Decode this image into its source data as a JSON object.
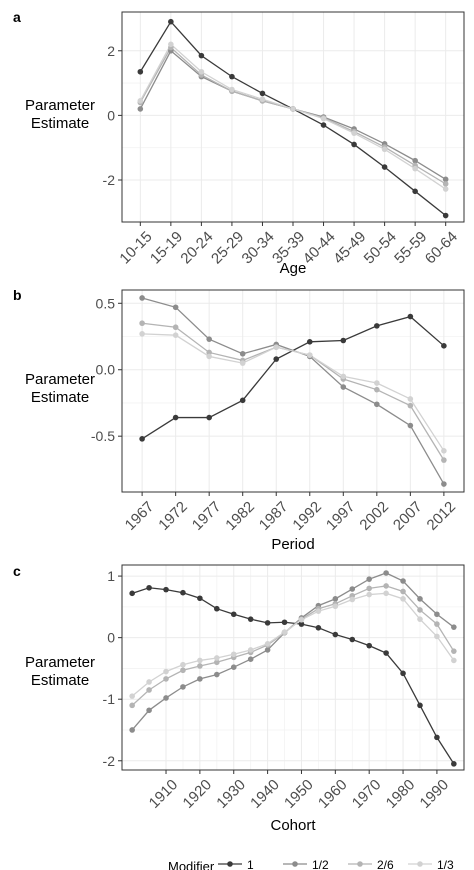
{
  "figure": {
    "ylabel_line1": "Parameter",
    "ylabel_line2": "Estimate",
    "legend": {
      "title": "Modifier",
      "labels": [
        "1",
        "1/2",
        "2/6",
        "1/3"
      ]
    }
  },
  "colors": {
    "series": [
      "#3a3a3a",
      "#8c8c8c",
      "#b4b4b4",
      "#d2d2d2"
    ],
    "grid": "#ebebeb",
    "panel_border": "#333333"
  },
  "chart_data": [
    {
      "type": "line",
      "panel_label": "a",
      "xlabel": "Age",
      "ylabel": "Parameter Estimate",
      "categories": [
        "10-15",
        "15-19",
        "20-24",
        "25-29",
        "30-34",
        "35-39",
        "40-44",
        "45-49",
        "50-54",
        "55-59",
        "60-64"
      ],
      "yticks": [
        -2,
        0,
        2
      ],
      "ylim": [
        -3.3,
        3.2
      ],
      "grid": true,
      "series": [
        {
          "name": "1",
          "values": [
            1.35,
            2.9,
            1.85,
            1.2,
            0.68,
            0.2,
            -0.3,
            -0.9,
            -1.6,
            -2.35,
            -3.1
          ]
        },
        {
          "name": "1/2",
          "values": [
            0.2,
            2.0,
            1.2,
            0.75,
            0.45,
            0.2,
            -0.05,
            -0.42,
            -0.88,
            -1.4,
            -1.98
          ]
        },
        {
          "name": "2/6",
          "values": [
            0.4,
            2.1,
            1.25,
            0.75,
            0.45,
            0.2,
            -0.08,
            -0.5,
            -0.98,
            -1.55,
            -2.12
          ]
        },
        {
          "name": "1/3",
          "values": [
            0.45,
            2.2,
            1.35,
            0.8,
            0.5,
            0.2,
            -0.1,
            -0.55,
            -1.05,
            -1.65,
            -2.28
          ]
        }
      ]
    },
    {
      "type": "line",
      "panel_label": "b",
      "xlabel": "Period",
      "ylabel": "Parameter Estimate",
      "categories": [
        "1967",
        "1972",
        "1977",
        "1982",
        "1987",
        "1992",
        "1997",
        "2002",
        "2007",
        "2012"
      ],
      "yticks": [
        -0.5,
        0.0,
        0.5
      ],
      "yticklabels": [
        "-0.5",
        "0.0",
        "0.5"
      ],
      "ylim": [
        -0.92,
        0.6
      ],
      "grid": true,
      "series": [
        {
          "name": "1",
          "values": [
            -0.52,
            -0.36,
            -0.36,
            -0.23,
            0.08,
            0.21,
            0.22,
            0.33,
            0.4,
            0.18
          ]
        },
        {
          "name": "1/2",
          "values": [
            0.54,
            0.47,
            0.23,
            0.12,
            0.19,
            0.1,
            -0.13,
            -0.26,
            -0.42,
            -0.86
          ]
        },
        {
          "name": "2/6",
          "values": [
            0.35,
            0.32,
            0.13,
            0.07,
            0.17,
            0.11,
            -0.07,
            -0.15,
            -0.27,
            -0.68
          ]
        },
        {
          "name": "1/3",
          "values": [
            0.27,
            0.26,
            0.1,
            0.05,
            0.17,
            0.11,
            -0.05,
            -0.1,
            -0.22,
            -0.61
          ]
        }
      ]
    },
    {
      "type": "line",
      "panel_label": "c",
      "xlabel": "Cohort",
      "ylabel": "Parameter Estimate",
      "x": [
        1900,
        1905,
        1910,
        1915,
        1920,
        1925,
        1930,
        1935,
        1940,
        1945,
        1950,
        1955,
        1960,
        1965,
        1970,
        1975,
        1980,
        1985,
        1990,
        1995
      ],
      "xticks": [
        1910,
        1920,
        1930,
        1940,
        1950,
        1960,
        1970,
        1980,
        1990
      ],
      "yticks": [
        -2,
        -1,
        0,
        1
      ],
      "ylim": [
        -2.15,
        1.18
      ],
      "xlim": [
        1897,
        1998
      ],
      "grid": true,
      "series": [
        {
          "name": "1",
          "values": [
            0.72,
            0.81,
            0.78,
            0.73,
            0.64,
            0.47,
            0.38,
            0.3,
            0.24,
            0.25,
            0.22,
            0.16,
            0.05,
            -0.03,
            -0.13,
            -0.25,
            -0.58,
            -1.1,
            -1.62,
            -2.05
          ]
        },
        {
          "name": "1/2",
          "values": [
            -1.5,
            -1.18,
            -0.98,
            -0.8,
            -0.67,
            -0.6,
            -0.48,
            -0.35,
            -0.2,
            0.08,
            0.32,
            0.52,
            0.63,
            0.79,
            0.95,
            1.05,
            0.92,
            0.63,
            0.38,
            0.17
          ]
        },
        {
          "name": "2/6",
          "values": [
            -1.1,
            -0.85,
            -0.67,
            -0.53,
            -0.46,
            -0.4,
            -0.32,
            -0.24,
            -0.12,
            0.08,
            0.3,
            0.47,
            0.55,
            0.68,
            0.8,
            0.84,
            0.75,
            0.45,
            0.22,
            -0.22
          ]
        },
        {
          "name": "1/3",
          "values": [
            -0.95,
            -0.72,
            -0.55,
            -0.44,
            -0.37,
            -0.33,
            -0.27,
            -0.2,
            -0.1,
            0.09,
            0.29,
            0.43,
            0.51,
            0.62,
            0.7,
            0.72,
            0.63,
            0.3,
            0.02,
            -0.37
          ]
        }
      ]
    }
  ]
}
